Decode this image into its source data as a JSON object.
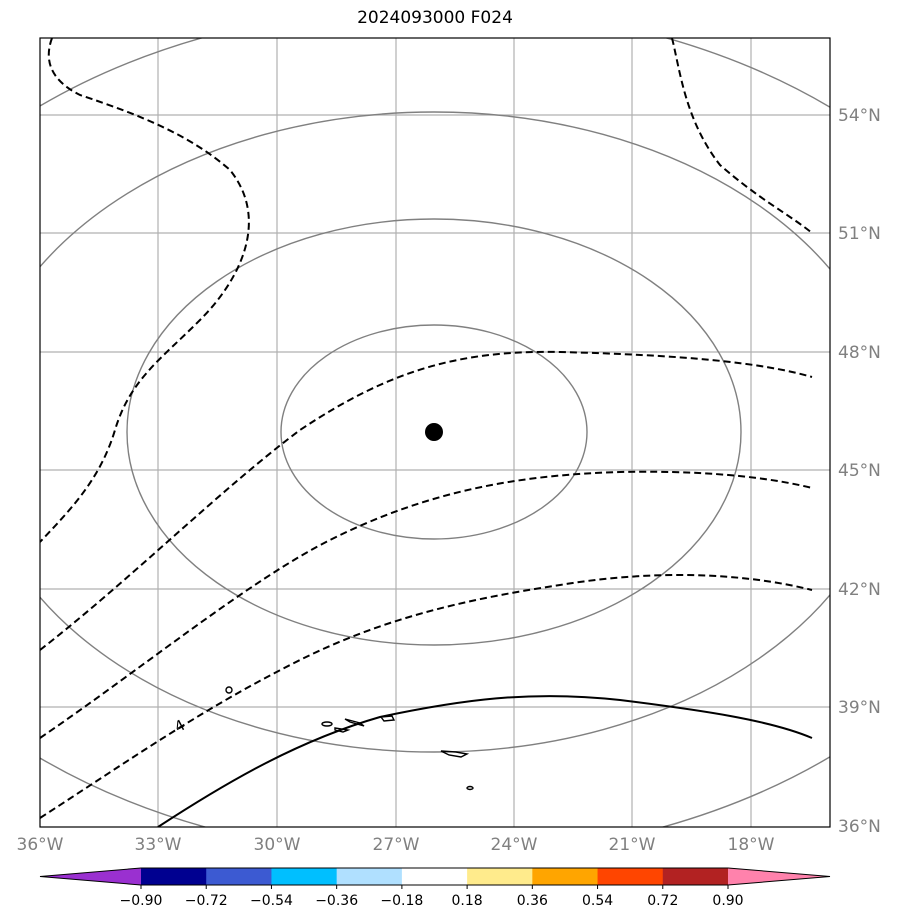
{
  "title": "2024093000 F024",
  "map": {
    "lon_labels": [
      "36°W",
      "33°W",
      "30°W",
      "27°W",
      "24°W",
      "21°W",
      "18°W"
    ],
    "lat_labels": [
      "54°N",
      "51°N",
      "48°N",
      "45°N",
      "42°N",
      "39°N",
      "36°N"
    ],
    "center_marker": "storm-center-dot",
    "contour_labels": [
      "4"
    ]
  },
  "colorbar": {
    "ticks": [
      "−0.90",
      "−0.72",
      "−0.54",
      "−0.36",
      "−0.18",
      "0.18",
      "0.36",
      "0.54",
      "0.72",
      "0.90"
    ],
    "under_color": "#9a30d0",
    "colors": [
      "#000090",
      "#3c5ad2",
      "#00bfff",
      "#b0e0ff",
      "#ffffff",
      "#ffeb8c",
      "#ffa500",
      "#ff4500",
      "#b22222"
    ],
    "over_color": "#ff82ac"
  }
}
